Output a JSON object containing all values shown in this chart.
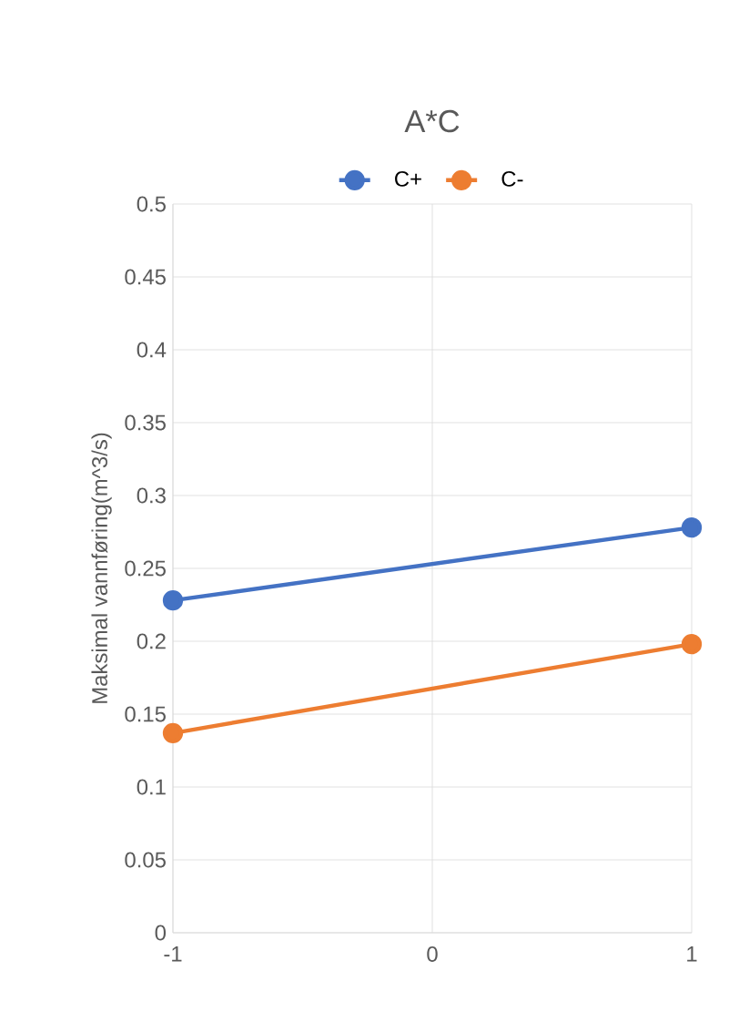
{
  "chart_data": {
    "type": "line",
    "title": "A*C",
    "ylabel": "Maksimal vannføring(m^3/s)",
    "x": [
      -1,
      1
    ],
    "series": [
      {
        "name": "C+",
        "color": "#4472c4",
        "values": [
          0.228,
          0.278
        ]
      },
      {
        "name": "C-",
        "color": "#ed7d31",
        "values": [
          0.137,
          0.198
        ]
      }
    ],
    "xlim": [
      -1,
      1
    ],
    "xticks": [
      -1,
      0,
      1
    ],
    "ylim": [
      0,
      0.5
    ],
    "yticks": [
      0,
      0.05,
      0.1,
      0.15,
      0.2,
      0.25,
      0.3,
      0.35,
      0.4,
      0.45,
      0.5
    ],
    "grid": true,
    "legend": "top",
    "marker": "circle",
    "line_style": "solid"
  }
}
